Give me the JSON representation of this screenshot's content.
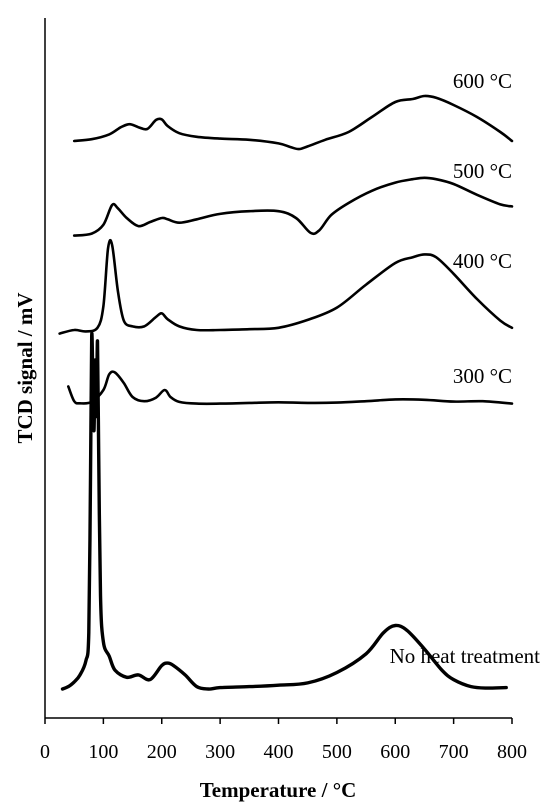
{
  "chart_data": {
    "type": "line",
    "xlabel": "Temperature / °C",
    "ylabel": "TCD signal / mV",
    "xlim": [
      0,
      800
    ],
    "xticks": [
      0,
      100,
      200,
      300,
      400,
      500,
      600,
      700,
      800
    ],
    "y_tick_labels": false,
    "grid": false,
    "legend": "none (curves labelled directly)",
    "series": [
      {
        "name": "600 °C",
        "x": [
          50,
          80,
          110,
          130,
          145,
          160,
          175,
          190,
          200,
          210,
          230,
          260,
          300,
          350,
          400,
          420,
          435,
          450,
          480,
          520,
          560,
          600,
          630,
          650,
          670,
          700,
          740,
          780,
          800
        ],
        "y": [
          1.5,
          1.8,
          2.6,
          3.8,
          4.3,
          3.8,
          3.5,
          5.0,
          5.1,
          4.0,
          2.8,
          2.2,
          1.9,
          1.7,
          1.1,
          0.5,
          0.15,
          0.6,
          1.7,
          3.0,
          5.5,
          8.0,
          8.5,
          9.0,
          8.7,
          7.5,
          5.5,
          3.0,
          1.5
        ]
      },
      {
        "name": "500 °C",
        "x": [
          50,
          80,
          100,
          115,
          125,
          140,
          160,
          180,
          200,
          210,
          230,
          260,
          300,
          350,
          400,
          430,
          455,
          470,
          490,
          520,
          560,
          600,
          630,
          650,
          670,
          700,
          740,
          780,
          800
        ],
        "y": [
          0.2,
          0.5,
          1.8,
          4.7,
          4.2,
          2.8,
          1.6,
          2.2,
          2.8,
          2.6,
          2.1,
          2.6,
          3.4,
          3.8,
          3.8,
          2.8,
          0.6,
          1.0,
          3.2,
          5.0,
          6.8,
          8.0,
          8.5,
          8.7,
          8.5,
          7.8,
          6.2,
          4.8,
          4.5
        ]
      },
      {
        "name": "400 °C",
        "x": [
          25,
          50,
          70,
          90,
          100,
          108,
          115,
          125,
          135,
          150,
          170,
          190,
          200,
          210,
          230,
          260,
          300,
          350,
          400,
          450,
          500,
          550,
          600,
          630,
          650,
          670,
          700,
          740,
          780,
          800
        ],
        "y": [
          0.2,
          0.7,
          0.5,
          1.0,
          4.0,
          12.0,
          12.5,
          6.0,
          2.0,
          1.2,
          1.2,
          2.5,
          3.0,
          2.2,
          1.2,
          0.7,
          0.7,
          0.8,
          1.0,
          2.1,
          3.8,
          7.0,
          10.0,
          10.8,
          11.2,
          10.8,
          8.5,
          5.0,
          2.0,
          1.0
        ]
      },
      {
        "name": "300 °C",
        "x": [
          40,
          50,
          60,
          80,
          100,
          110,
          120,
          135,
          150,
          170,
          190,
          205,
          215,
          230,
          260,
          300,
          350,
          400,
          450,
          500,
          550,
          600,
          650,
          700,
          750,
          800
        ],
        "y": [
          5.0,
          0.8,
          0.2,
          0.6,
          4.0,
          8.5,
          9.0,
          6.0,
          2.0,
          0.8,
          1.8,
          4.0,
          2.0,
          0.6,
          0.1,
          0.1,
          0.3,
          0.5,
          0.3,
          0.4,
          0.8,
          1.3,
          1.2,
          0.7,
          0.8,
          0.1
        ]
      },
      {
        "name": "No heat treatment",
        "x": [
          30,
          40,
          50,
          60,
          70,
          75,
          78,
          80,
          82,
          84,
          86,
          88,
          90,
          92,
          95,
          100,
          110,
          120,
          140,
          160,
          180,
          200,
          210,
          220,
          240,
          260,
          280,
          300,
          350,
          400,
          450,
          500,
          550,
          580,
          600,
          620,
          650,
          680,
          700,
          730,
          760,
          790
        ],
        "y": [
          0.0,
          0.5,
          1.5,
          3.0,
          6.0,
          12.0,
          45.0,
          75.0,
          65.0,
          55.0,
          70.0,
          58.0,
          74.0,
          50.0,
          20.0,
          10.0,
          7.0,
          4.0,
          2.5,
          3.0,
          2.0,
          5.0,
          5.5,
          5.0,
          3.0,
          0.5,
          0.0,
          0.3,
          0.5,
          0.8,
          1.3,
          3.5,
          7.5,
          12.0,
          13.5,
          12.5,
          8.5,
          4.0,
          2.0,
          0.5,
          0.2,
          0.3
        ]
      }
    ]
  }
}
